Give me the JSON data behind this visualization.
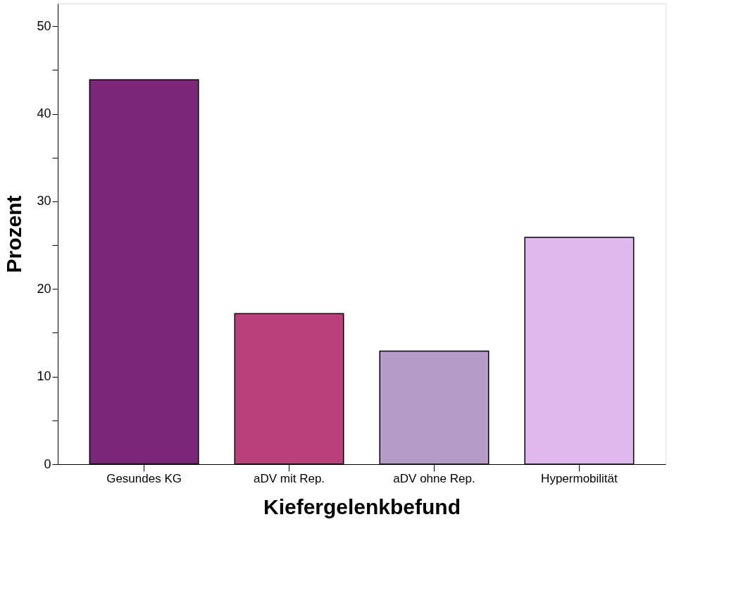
{
  "chart_data": {
    "type": "bar",
    "xlabel": "Kiefergelenkbefund",
    "ylabel": "Prozent",
    "categories": [
      "Gesundes KG",
      "aDV mit Rep.",
      "aDV ohne Rep.",
      "Hypermobilität"
    ],
    "values": [
      43.9,
      17.2,
      12.9,
      25.9
    ],
    "colors": [
      "#7b2779",
      "#b9407b",
      "#b89cc8",
      "#dfb8f0"
    ],
    "ylim": [
      0,
      52.6
    ],
    "yticks": [
      0,
      {
        "value": 5,
        "label": null
      },
      10,
      {
        "value": 15,
        "label": null
      },
      20,
      {
        "value": 25,
        "label": null
      },
      30,
      {
        "value": 35,
        "label": null
      },
      40,
      {
        "value": 45,
        "label": null
      },
      50
    ],
    "grid": false,
    "legend": false
  }
}
